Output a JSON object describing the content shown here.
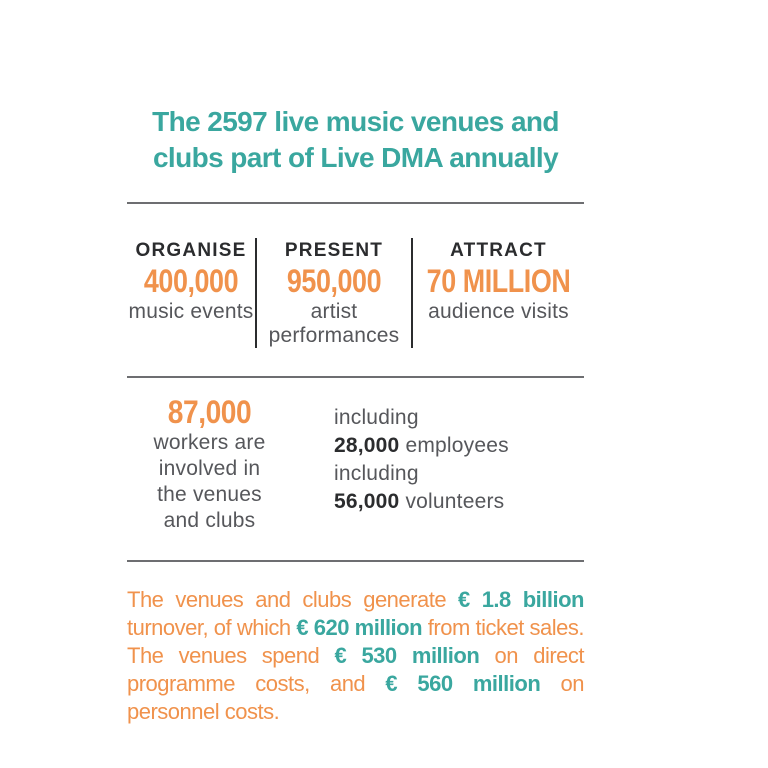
{
  "colors": {
    "teal": "#3AA79F",
    "orange": "#F0924C",
    "dark": "#2B2C2E",
    "gray": "#56575B",
    "line": "#6D6E71"
  },
  "title": {
    "text": "The 2597 live music venues and clubs part of Live DMA annually"
  },
  "stats": {
    "columns": [
      {
        "header": "ORGANISE",
        "value": "400,000",
        "label": "music events"
      },
      {
        "header": "PRESENT",
        "value": "950,000",
        "label": "artist performances"
      },
      {
        "header": "ATTRACT",
        "value": "70 MILLION",
        "label": "audience visits"
      }
    ]
  },
  "workers": {
    "value": "87,000",
    "label": "workers are involved in the venues and clubs",
    "details": [
      {
        "prefix": "including",
        "value": "28,000",
        "label": " employees"
      },
      {
        "prefix": "including",
        "value": "56,000",
        "label": " volunteers"
      }
    ]
  },
  "finance": {
    "segments": [
      {
        "text": "The venues and clubs generate ",
        "highlight": false
      },
      {
        "text": "€ 1.8 billion",
        "highlight": true
      },
      {
        "text": " turnover, of which ",
        "highlight": false
      },
      {
        "text": "€ 620 million",
        "highlight": true
      },
      {
        "text": " from ticket sales. The venues spend ",
        "highlight": false
      },
      {
        "text": "€ 530 million",
        "highlight": true
      },
      {
        "text": " on direct programme costs, and ",
        "highlight": false
      },
      {
        "text": "€ 560 million",
        "highlight": true
      },
      {
        "text": " on personnel costs.",
        "highlight": false
      }
    ]
  }
}
